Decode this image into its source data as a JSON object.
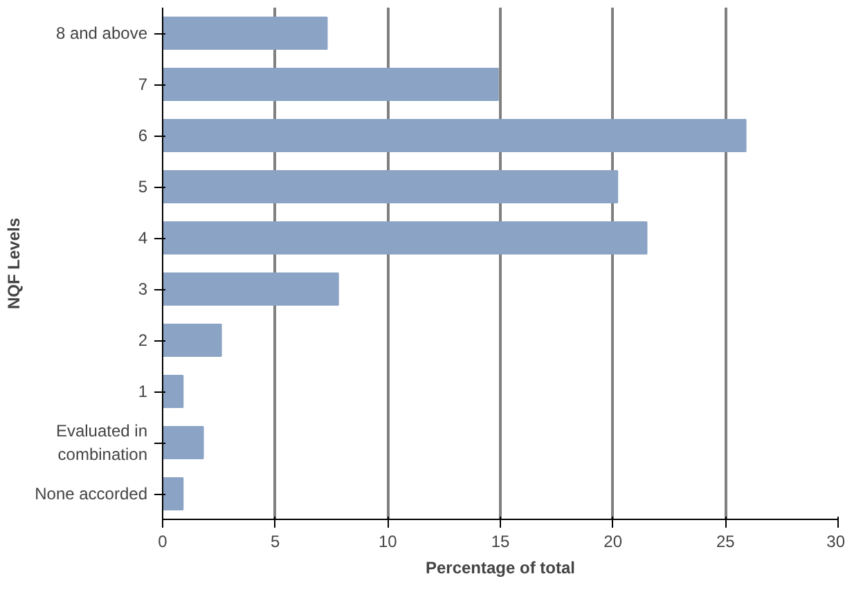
{
  "chart_data": {
    "type": "bar",
    "orientation": "horizontal",
    "xlabel": "Percentage of total",
    "ylabel": "NQF Levels",
    "categories": [
      "8 and above",
      "7",
      "6",
      "5",
      "4",
      "3",
      "2",
      "1",
      "Evaluated in combination",
      "None accorded"
    ],
    "values": [
      7.3,
      14.9,
      25.9,
      20.2,
      21.5,
      7.8,
      2.6,
      0.9,
      1.8,
      0.9
    ],
    "color": "#8ba3c4",
    "xlim": [
      0,
      30
    ],
    "xticks": [
      0,
      5,
      10,
      15,
      20,
      25,
      30
    ],
    "grid": "x"
  }
}
